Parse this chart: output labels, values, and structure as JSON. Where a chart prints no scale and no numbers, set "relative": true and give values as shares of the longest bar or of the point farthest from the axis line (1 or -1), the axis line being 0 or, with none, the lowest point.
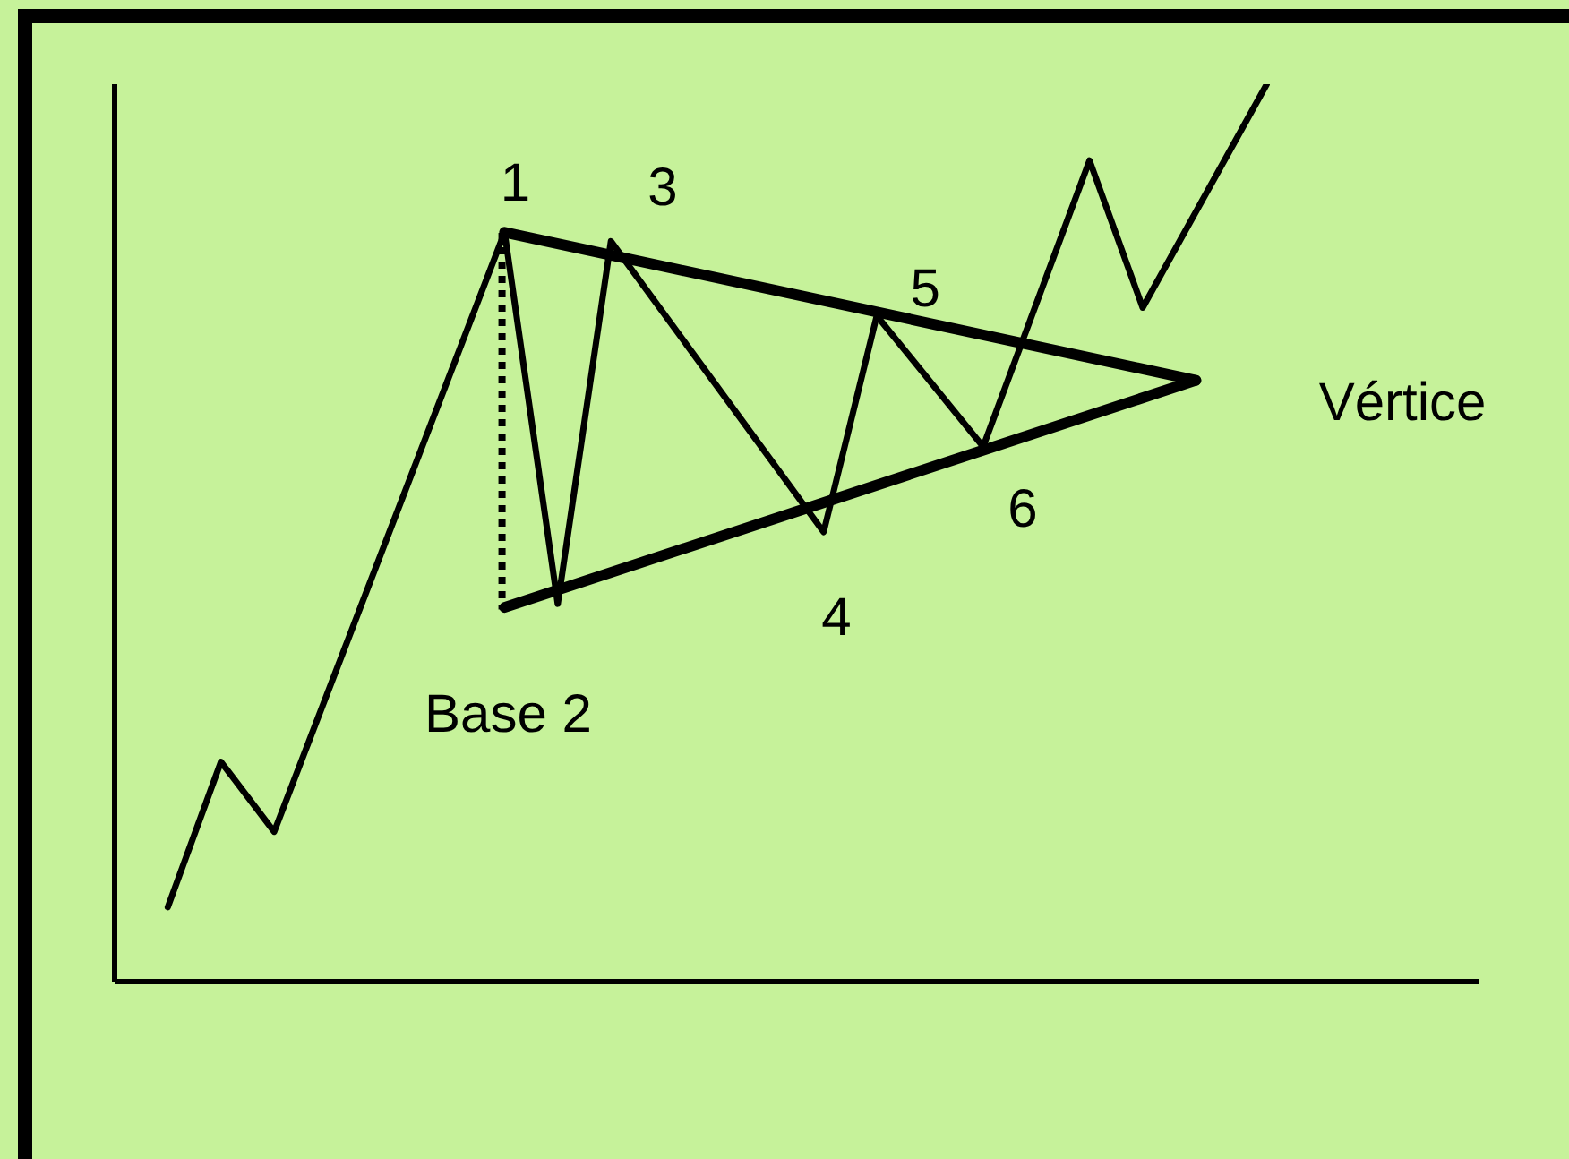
{
  "chart_data": {
    "type": "line",
    "relative": true,
    "marker": "none",
    "categories": [
      null,
      null,
      null,
      null,
      null,
      null,
      null,
      null,
      null,
      null,
      null,
      null,
      null,
      null,
      null,
      null,
      null,
      null,
      null,
      null,
      null,
      null,
      null,
      null,
      null,
      null,
      null,
      null,
      null,
      null,
      null,
      null,
      null,
      null,
      null,
      null,
      null,
      null,
      null,
      null,
      null,
      null,
      null,
      null,
      null,
      null,
      null,
      null,
      null,
      null,
      null,
      null,
      null,
      null,
      null,
      null,
      null,
      null,
      null,
      null,
      null,
      null,
      null,
      null,
      null,
      null,
      null,
      null,
      null,
      null,
      null,
      null,
      null,
      null,
      null,
      null,
      null,
      null
    ],
    "series": [
      {
        "color": "#000000",
        "values": [
          null,
          null,
          null,
          0.083,
          null,
          null,
          0.245,
          null,
          null,
          0.167,
          null,
          null,
          null,
          null,
          null,
          null,
          null,
          null,
          null,
          null,
          null,
          null,
          0.835,
          null,
          null,
          0.421,
          null,
          null,
          0.825,
          null,
          null,
          null,
          null,
          null,
          null,
          null,
          null,
          null,
          null,
          null,
          0.501,
          null,
          null,
          0.742,
          null,
          null,
          null,
          null,
          null,
          0.596,
          null,
          null,
          null,
          null,
          null,
          0.915,
          null,
          null,
          0.751,
          null,
          null,
          null,
          null,
          null,
          null,
          1.0,
          null,
          null,
          null,
          null,
          null,
          null,
          null,
          null,
          null,
          null,
          null,
          null
        ]
      },
      {
        "color": "#000000",
        "values": [
          null,
          null,
          null,
          null,
          null,
          null,
          null,
          null,
          null,
          null,
          null,
          null,
          null,
          null,
          null,
          null,
          null,
          null,
          null,
          null,
          null,
          null,
          0.835,
          null,
          null,
          null,
          null,
          null,
          null,
          null,
          null,
          null,
          null,
          null,
          null,
          null,
          null,
          null,
          null,
          null,
          null,
          null,
          null,
          null,
          null,
          null,
          null,
          null,
          null,
          null,
          null,
          null,
          null,
          null,
          null,
          null,
          null,
          null,
          null,
          null,
          null,
          0.67,
          null,
          null,
          null,
          null,
          null,
          null,
          null,
          null,
          null,
          null,
          null,
          null,
          null,
          null,
          null,
          null
        ]
      },
      {
        "color": "#000000",
        "values": [
          null,
          null,
          null,
          null,
          null,
          null,
          null,
          null,
          null,
          null,
          null,
          null,
          null,
          null,
          null,
          null,
          null,
          null,
          null,
          null,
          null,
          null,
          0.417,
          null,
          null,
          null,
          null,
          null,
          null,
          null,
          null,
          null,
          null,
          null,
          null,
          null,
          null,
          null,
          null,
          null,
          null,
          null,
          null,
          null,
          null,
          null,
          null,
          null,
          null,
          null,
          null,
          null,
          null,
          null,
          null,
          null,
          null,
          null,
          null,
          null,
          null,
          0.67,
          null,
          null,
          null,
          null,
          null,
          null,
          null,
          null,
          null,
          null,
          null,
          null,
          null,
          null,
          null,
          null
        ]
      }
    ],
    "annotations": [
      {
        "text": "1",
        "y": 0.835
      },
      "3",
      {
        "text": "5",
        "y": 0.742
      },
      "4",
      {
        "text": "6",
        "y": 0.596
      },
      {
        "text": "Base 2",
        "y": 0.417
      },
      "Vértice"
    ]
  }
}
